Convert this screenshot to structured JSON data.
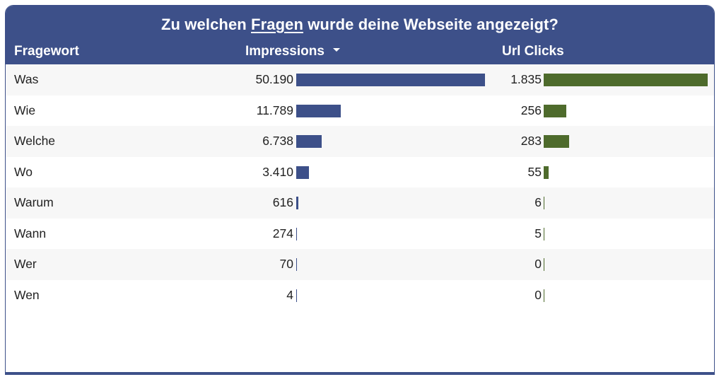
{
  "title_pre": "Zu welchen ",
  "title_highlight": "Fragen",
  "title_post": " wurde deine Webseite angezeigt?",
  "columns": {
    "fragewort": "Fragewort",
    "impressions": "Impressions",
    "url_clicks": "Url Clicks"
  },
  "sort": {
    "column": "impressions",
    "direction": "desc",
    "icon": "caret-down-icon"
  },
  "colors": {
    "header": "#3d5089",
    "impressions_bar": "#3d5089",
    "clicks_bar": "#4e6b2c"
  },
  "max": {
    "impressions": 50190,
    "url_clicks": 1835
  },
  "rows": [
    {
      "fragewort": "Was",
      "impressions": "50.190",
      "impressions_value": 50190,
      "url_clicks": "1.835",
      "url_clicks_value": 1835
    },
    {
      "fragewort": "Wie",
      "impressions": "11.789",
      "impressions_value": 11789,
      "url_clicks": "256",
      "url_clicks_value": 256
    },
    {
      "fragewort": "Welche",
      "impressions": "6.738",
      "impressions_value": 6738,
      "url_clicks": "283",
      "url_clicks_value": 283
    },
    {
      "fragewort": "Wo",
      "impressions": "3.410",
      "impressions_value": 3410,
      "url_clicks": "55",
      "url_clicks_value": 55
    },
    {
      "fragewort": "Warum",
      "impressions": "616",
      "impressions_value": 616,
      "url_clicks": "6",
      "url_clicks_value": 6
    },
    {
      "fragewort": "Wann",
      "impressions": "274",
      "impressions_value": 274,
      "url_clicks": "5",
      "url_clicks_value": 5
    },
    {
      "fragewort": "Wer",
      "impressions": "70",
      "impressions_value": 70,
      "url_clicks": "0",
      "url_clicks_value": 0
    },
    {
      "fragewort": "Wen",
      "impressions": "4",
      "impressions_value": 4,
      "url_clicks": "0",
      "url_clicks_value": 0
    }
  ]
}
